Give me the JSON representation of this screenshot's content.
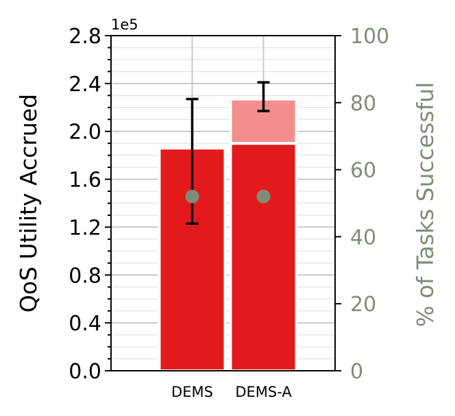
{
  "chart_data": {
    "type": "bar",
    "stacked": true,
    "categories": [
      "DEMS",
      "DEMS-A"
    ],
    "y_offset_label": "1e5",
    "ylabel": "QoS Utility Accrued",
    "ylim": [
      0,
      2.8
    ],
    "y_ticks": [
      "0.0",
      "0.4",
      "0.8",
      "1.2",
      "1.6",
      "2.0",
      "2.4",
      "2.8"
    ],
    "y_tick_values": [
      0,
      0.4,
      0.8,
      1.2,
      1.6,
      2.0,
      2.4,
      2.8
    ],
    "series": [
      {
        "values": [
          1.86,
          1.9
        ],
        "color": "#e31a1c"
      },
      {
        "values": [
          0.0,
          0.37
        ],
        "color": "#f28e8e"
      }
    ],
    "error_bars": [
      {
        "center": 1.75,
        "low": 1.23,
        "high": 2.27
      },
      {
        "center": 2.29,
        "low": 2.17,
        "high": 2.41
      }
    ],
    "y2label": "% of Tasks Successful",
    "y2lim": [
      0,
      100
    ],
    "y2_ticks": [
      "0",
      "20",
      "40",
      "60",
      "80",
      "100"
    ],
    "y2_tick_values": [
      0,
      20,
      40,
      60,
      80,
      100
    ],
    "y2_color": "#7f8c7a",
    "success_points": [
      52,
      52
    ],
    "grid": true
  }
}
